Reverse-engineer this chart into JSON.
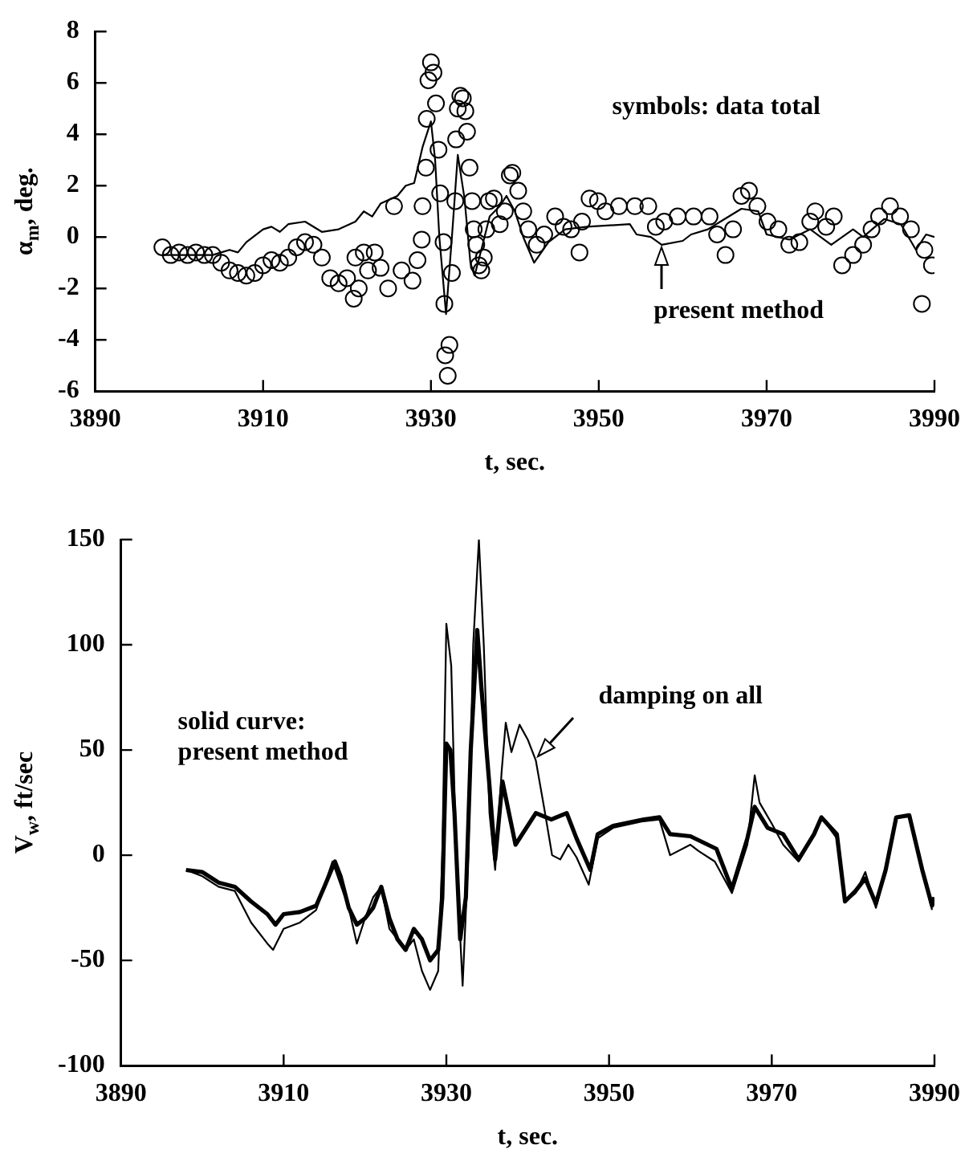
{
  "chart_data": [
    {
      "type": "scatter",
      "xlabel": "t, sec.",
      "ylabel": "α$_{m}$, deg.",
      "xlim": [
        3890,
        3990
      ],
      "xticks": [
        3890,
        3910,
        3930,
        3950,
        3970,
        3990
      ],
      "ylim": [
        -6,
        8
      ],
      "yticks": [
        -6,
        -4,
        -2,
        0,
        2,
        4,
        6,
        8
      ],
      "grid": false,
      "legend": false,
      "annotations": [
        "symbols: data total",
        {
          "text": "present method",
          "x": 3957.5,
          "y": -0.4
        }
      ],
      "series": [
        {
          "marker": "circle",
          "color": "#000000",
          "x": [
            3898,
            3899,
            3900,
            3901,
            3902,
            3903,
            3904,
            3905,
            3906,
            3907,
            3908,
            3909,
            3910,
            3911,
            3912,
            3913,
            3914,
            3915,
            3916,
            3917,
            3918,
            3919,
            3920,
            3920.8,
            3921,
            3921.4,
            3922,
            3922.5,
            3923.3,
            3924,
            3924.9,
            3925.6,
            3926.5,
            3927.8,
            3928.4,
            3928.9,
            3929,
            3929.4,
            3929.5,
            3929.7,
            3930,
            3930.3,
            3930.6,
            3930.9,
            3931.1,
            3931.5,
            3931.6,
            3931.7,
            3932,
            3932.2,
            3932.5,
            3932.9,
            3933,
            3933.2,
            3933.5,
            3933.8,
            3934.1,
            3934.3,
            3934.6,
            3934.9,
            3935.1,
            3935.4,
            3935.7,
            3936,
            3936.3,
            3936.6,
            3936.9,
            3937.5,
            3938.2,
            3938.8,
            3939.4,
            3939.7,
            3940.4,
            3941,
            3941.6,
            3942.6,
            3943.5,
            3944.8,
            3945.8,
            3946.7,
            3947.7,
            3948,
            3948.9,
            3949.9,
            3950.8,
            3952.4,
            3954.3,
            3955.9,
            3956.8,
            3957.8,
            3959.4,
            3961.3,
            3963.2,
            3964.1,
            3965.1,
            3966,
            3967,
            3967.9,
            3968.9,
            3970.1,
            3971.4,
            3972.7,
            3973.9,
            3975.2,
            3975.8,
            3977.1,
            3978,
            3979,
            3980.3,
            3981.5,
            3982.5,
            3983.4,
            3984.7,
            3985.9,
            3987.2,
            3988.5,
            3988.8,
            3989.7
          ],
          "values": [
            -0.4,
            -0.7,
            -0.6,
            -0.7,
            -0.6,
            -0.7,
            -0.7,
            -1.0,
            -1.3,
            -1.4,
            -1.5,
            -1.4,
            -1.1,
            -0.9,
            -1.0,
            -0.8,
            -0.4,
            -0.2,
            -0.3,
            -0.8,
            -1.6,
            -1.8,
            -1.6,
            -2.4,
            -0.8,
            -2.0,
            -0.6,
            -1.3,
            -0.6,
            -1.2,
            -2.0,
            1.2,
            -1.3,
            -1.7,
            -0.9,
            -0.1,
            1.2,
            2.7,
            4.6,
            6.1,
            6.8,
            6.4,
            5.2,
            3.4,
            1.7,
            -0.2,
            -2.6,
            -4.6,
            -5.4,
            -4.2,
            -1.4,
            1.4,
            3.8,
            5.0,
            5.5,
            5.4,
            4.9,
            4.1,
            2.7,
            1.4,
            0.3,
            -0.3,
            -1.1,
            -1.3,
            -0.8,
            0.3,
            1.4,
            1.5,
            0.5,
            1.0,
            2.4,
            2.5,
            1.8,
            1.0,
            0.3,
            -0.3,
            0.1,
            0.8,
            0.4,
            0.3,
            -0.6,
            0.6,
            1.5,
            1.4,
            1.0,
            1.2,
            1.2,
            1.2,
            0.4,
            0.6,
            0.8,
            0.8,
            0.8,
            0.1,
            -0.7,
            0.3,
            1.6,
            1.8,
            1.2,
            0.6,
            0.3,
            -0.3,
            -0.2,
            0.6,
            1.0,
            0.4,
            0.8,
            -1.1,
            -0.7,
            -0.3,
            0.3,
            0.8,
            1.2,
            0.8,
            0.3,
            -2.6,
            -0.5,
            -1.1
          ]
        },
        {
          "type": "line",
          "marker": "none",
          "line_style": "solid",
          "color": "#000000",
          "x": [
            3898,
            3900,
            3902,
            3904,
            3905,
            3906,
            3907,
            3908,
            3910,
            3911,
            3912,
            3913,
            3915,
            3917,
            3919,
            3921,
            3922,
            3923,
            3924,
            3926,
            3927,
            3928,
            3929,
            3930,
            3930.5,
            3931,
            3931.8,
            3932.5,
            3933.2,
            3934,
            3934.7,
            3935.2,
            3936,
            3937,
            3938.2,
            3939,
            3940,
            3941,
            3942.3,
            3944,
            3946,
            3948.6,
            3953.7,
            3954.5,
            3956.2,
            3957.5,
            3960,
            3961,
            3963,
            3965,
            3967,
            3969,
            3970,
            3972.7,
            3975.2,
            3977.7,
            3980.3,
            3981.5,
            3984,
            3986,
            3987.8,
            3989,
            3990
          ],
          "values": [
            -0.7,
            -0.7,
            -0.7,
            -0.7,
            -0.6,
            -0.5,
            -0.6,
            -0.2,
            0.3,
            0.4,
            0.2,
            0.5,
            0.6,
            0.2,
            0.3,
            0.6,
            1.0,
            0.8,
            1.3,
            1.6,
            2.0,
            2.1,
            3.5,
            4.5,
            3.0,
            0,
            -3.0,
            0,
            3.2,
            1.5,
            -1.0,
            -1.5,
            -0.5,
            0.8,
            1.2,
            1.6,
            1.0,
            0,
            -1.0,
            -0.2,
            0.3,
            0.4,
            0.5,
            0.1,
            0,
            -0.3,
            -0.15,
            0.1,
            0.3,
            0.7,
            1.1,
            1.0,
            0.1,
            -0.1,
            0.3,
            -0.3,
            0.3,
            0,
            0.7,
            0.5,
            -0.5,
            0.1,
            0
          ]
        }
      ]
    },
    {
      "type": "line",
      "xlabel": "t, sec.",
      "ylabel": "V$_{w}$, ft/sec",
      "xlim": [
        3890,
        3990
      ],
      "xticks": [
        3890,
        3910,
        3930,
        3950,
        3970,
        3990
      ],
      "ylim": [
        -100,
        150
      ],
      "yticks": [
        -100,
        -50,
        0,
        50,
        100,
        150
      ],
      "grid": false,
      "legend": false,
      "marker": "none",
      "line_style": "solid",
      "annotations": [
        "solid curve: present method",
        {
          "text": "damping on all",
          "x": 3941.2,
          "y": 47
        }
      ],
      "series": [
        {
          "color": "#000000",
          "x": [
            3898,
            3900,
            3902,
            3904,
            3906,
            3908,
            3909,
            3910,
            3912,
            3914,
            3915,
            3916.3,
            3917,
            3918,
            3919,
            3920,
            3921,
            3922,
            3923,
            3924,
            3925,
            3926,
            3927,
            3928,
            3929,
            3929.5,
            3930,
            3930.5,
            3931,
            3931.7,
            3932.4,
            3933,
            3933.8,
            3934.3,
            3935.3,
            3936,
            3936.9,
            3938.5,
            3941,
            3942.9,
            3944.8,
            3946,
            3947.7,
            3948.6,
            3950.5,
            3954.3,
            3956.2,
            3957.5,
            3960,
            3963.2,
            3965.1,
            3967,
            3967.9,
            3969.5,
            3971.4,
            3973.3,
            3975.2,
            3976.1,
            3978,
            3979,
            3980.3,
            3981.5,
            3982.8,
            3984,
            3985.3,
            3986.9,
            3988.5,
            3989.7,
            3990
          ],
          "values": [
            -7,
            -8,
            -13,
            -15,
            -22,
            -28,
            -33,
            -28,
            -27,
            -24,
            -15,
            -3,
            -10,
            -25,
            -33,
            -30,
            -25,
            -15,
            -30,
            -40,
            -45,
            -35,
            -40,
            -50,
            -45,
            -20,
            53,
            50,
            20,
            -40,
            -20,
            50,
            107,
            80,
            33,
            -2,
            35,
            5,
            20,
            17,
            20,
            8,
            -7,
            10,
            14,
            17,
            18,
            10,
            9,
            3,
            -16,
            8,
            23,
            13,
            10,
            -2,
            10,
            18,
            10,
            -22,
            -17,
            -11,
            -23,
            -7,
            18,
            19,
            -7,
            -24,
            -20
          ]
        },
        {
          "color": "#000000",
          "x": [
            3898,
            3900,
            3902,
            3904,
            3906,
            3908,
            3908.7,
            3910,
            3912,
            3914,
            3916,
            3918,
            3919,
            3920,
            3921,
            3922,
            3923,
            3924,
            3925,
            3926,
            3927,
            3928,
            3929,
            3929.5,
            3930,
            3930.6,
            3931.2,
            3932,
            3932.7,
            3933.3,
            3934,
            3934.6,
            3935.3,
            3936,
            3936.8,
            3937.3,
            3938,
            3939,
            3940,
            3941,
            3942,
            3943,
            3944,
            3945,
            3946,
            3947.5,
            3948.6,
            3950.5,
            3954,
            3956.2,
            3957.5,
            3960,
            3961,
            3963,
            3965.1,
            3967,
            3967.9,
            3968.5,
            3970,
            3971.4,
            3973.3,
            3975.2,
            3976.1,
            3978,
            3979,
            3980.3,
            3981.5,
            3982.8,
            3984,
            3985.3,
            3986.9,
            3988.5,
            3989.7
          ],
          "values": [
            -7,
            -10,
            -15,
            -17,
            -32,
            -42,
            -45,
            -35,
            -32,
            -26,
            -3,
            -25,
            -42,
            -30,
            -20,
            -15,
            -35,
            -40,
            -45,
            -40,
            -55,
            -64,
            -55,
            0,
            110,
            90,
            0,
            -62,
            0,
            100,
            150,
            100,
            20,
            -7,
            40,
            63,
            49,
            62,
            55,
            45,
            23,
            0,
            -2,
            5,
            -1,
            -14,
            8,
            13,
            16,
            17,
            0,
            5,
            2,
            -3,
            -18,
            5,
            38,
            25,
            15,
            5,
            -3,
            10,
            18,
            8,
            -22,
            -18,
            -8,
            -25,
            -7,
            18,
            19,
            -7,
            -26
          ]
        }
      ]
    }
  ]
}
